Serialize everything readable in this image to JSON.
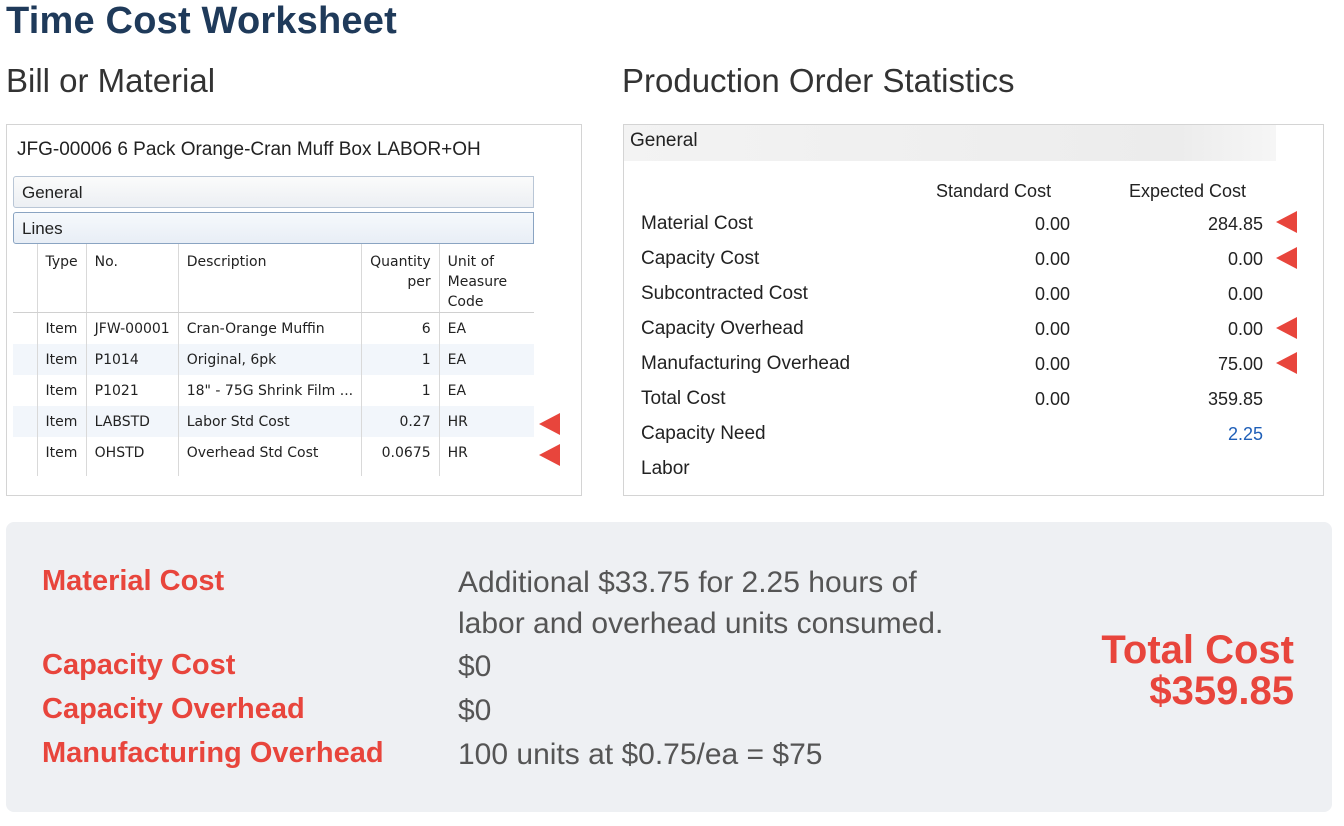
{
  "title": "Time Cost Worksheet",
  "left_section_title": "Bill or Material",
  "right_section_title": "Production Order Statistics",
  "bom": {
    "header": "JFG-00006 6 Pack Orange-Cran Muff Box LABOR+OH",
    "tab_general": "General",
    "tab_lines": "Lines",
    "columns": {
      "type": "Type",
      "no": "No.",
      "description": "Description",
      "qty_line1": "Quantity",
      "qty_line2": "per",
      "uom_line1": "Unit of",
      "uom_line2": "Measure",
      "uom_line3": "Code"
    },
    "rows": [
      {
        "type": "Item",
        "no": "JFW-00001",
        "description": "Cran-Orange Muffin",
        "qty": "6",
        "uom": "EA"
      },
      {
        "type": "Item",
        "no": "P1014",
        "description": "Original, 6pk",
        "qty": "1",
        "uom": "EA"
      },
      {
        "type": "Item",
        "no": "P1021",
        "description": "18\" - 75G Shrink Film ...",
        "qty": "1",
        "uom": "EA"
      },
      {
        "type": "Item",
        "no": "LABSTD",
        "description": "Labor Std Cost",
        "qty": "0.27",
        "uom": "HR"
      },
      {
        "type": "Item",
        "no": "OHSTD",
        "description": "Overhead Std Cost",
        "qty": "0.0675",
        "uom": "HR"
      }
    ]
  },
  "stats": {
    "general_label": "General",
    "col_standard": "Standard Cost",
    "col_expected": "Expected Cost",
    "rows": [
      {
        "label": "Material Cost",
        "standard": "0.00",
        "expected": "284.85"
      },
      {
        "label": "Capacity Cost",
        "standard": "0.00",
        "expected": "0.00"
      },
      {
        "label": "Subcontracted Cost",
        "standard": "0.00",
        "expected": "0.00"
      },
      {
        "label": "Capacity Overhead",
        "standard": "0.00",
        "expected": "0.00"
      },
      {
        "label": "Manufacturing Overhead",
        "standard": "0.00",
        "expected": "75.00"
      },
      {
        "label": "Total Cost",
        "standard": "0.00",
        "expected": "359.85"
      },
      {
        "label": "Capacity Need",
        "standard": "",
        "expected": "2.25"
      },
      {
        "label": "Labor",
        "standard": "",
        "expected": ""
      }
    ]
  },
  "summary": {
    "material_label": "Material Cost",
    "material_desc_line1": "Additional $33.75 for 2.25 hours of",
    "material_desc_line2": "labor and overhead units consumed.",
    "capacity_label": "Capacity Cost",
    "capacity_value": "$0",
    "capacity_overhead_label": "Capacity Overhead",
    "capacity_overhead_value": "$0",
    "manufacturing_label": "Manufacturing Overhead",
    "manufacturing_value": "100 units at $0.75/ea = $75",
    "total_label": "Total Cost",
    "total_value": "$359.85"
  },
  "colors": {
    "title": "#1f3a5a",
    "accent_red": "#e8453c",
    "link_blue": "#1f5fb8",
    "summary_bg": "#eef0f3"
  },
  "icons": [
    "red-arrow-marker-icon"
  ]
}
